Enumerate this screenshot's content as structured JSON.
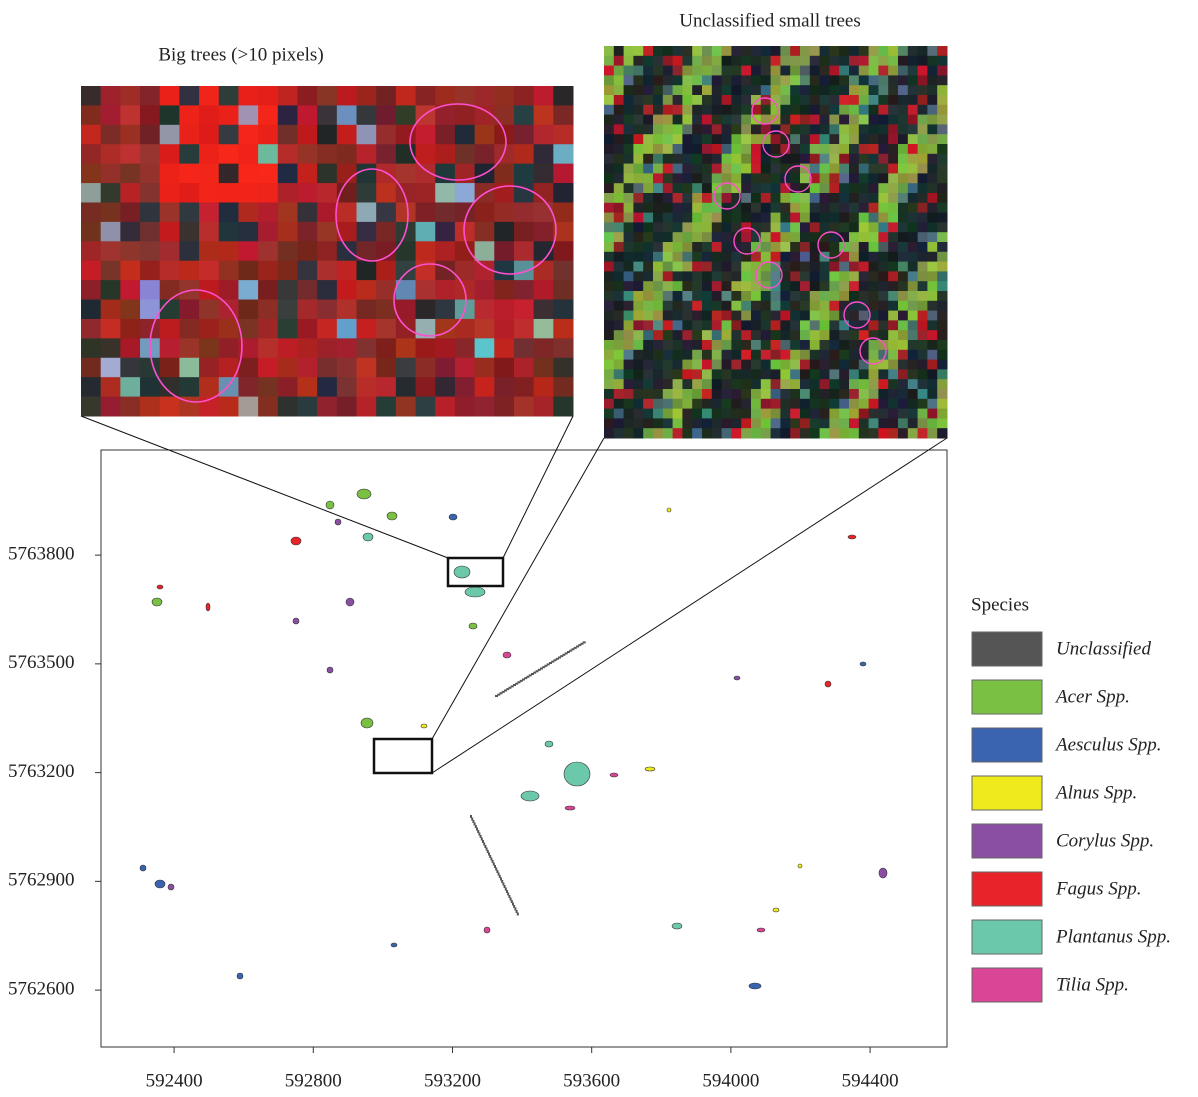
{
  "insets": [
    {
      "title": "Big trees (>10 pixels)"
    },
    {
      "title": "Unclassified small trees"
    }
  ],
  "map": {
    "xlim": [
      592190,
      594621
    ],
    "ylim": [
      5762443,
      5764090
    ],
    "xticks": [
      592400,
      592800,
      593200,
      593600,
      594000,
      594400
    ],
    "yticks": [
      5762600,
      5762900,
      5763200,
      5763500,
      5763800
    ]
  },
  "legend": {
    "title": "Species",
    "items": [
      {
        "name": "Unclassified",
        "color": "#555555"
      },
      {
        "name": "Acer Spp.",
        "color": "#7ac143"
      },
      {
        "name": "Aesculus Spp.",
        "color": "#3a63b0"
      },
      {
        "name": "Alnus Spp.",
        "color": "#eeea1c"
      },
      {
        "name": "Corylus Spp.",
        "color": "#8a4fa3"
      },
      {
        "name": "Fagus Spp.",
        "color": "#e8242a"
      },
      {
        "name": "Plantanus Spp.",
        "color": "#6cc8aa"
      },
      {
        "name": "Tilia Spp.",
        "color": "#d94695"
      }
    ]
  }
}
